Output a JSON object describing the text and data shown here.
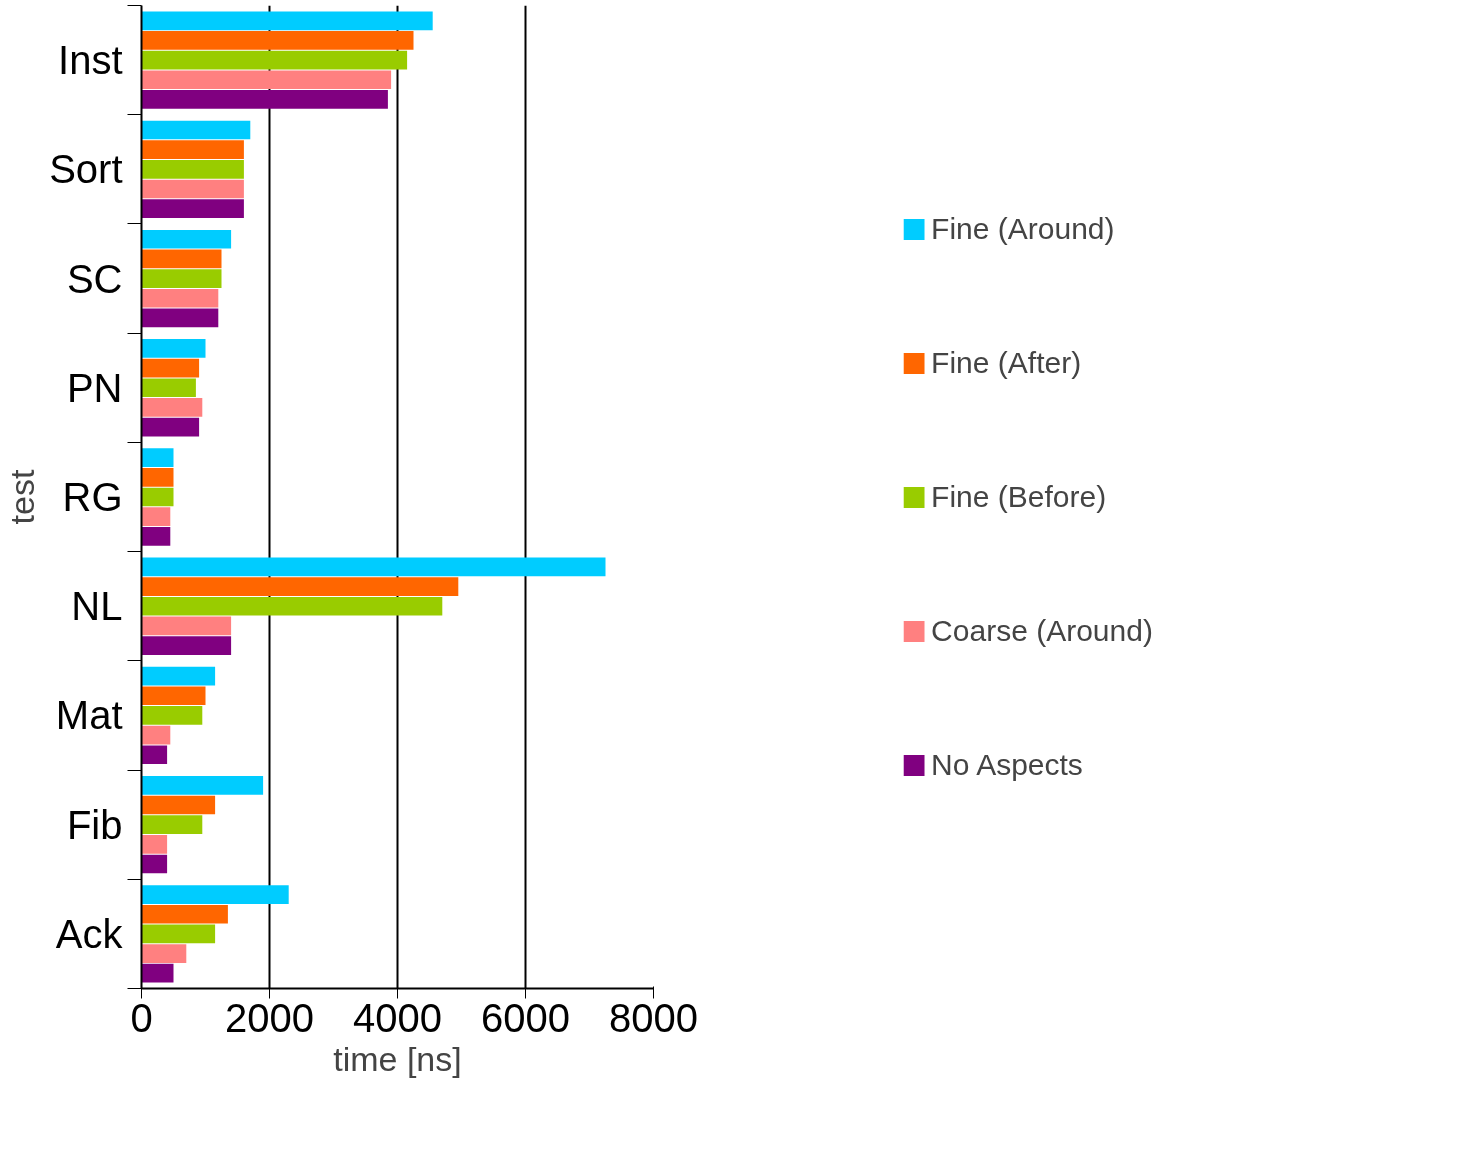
{
  "chart_data": {
    "type": "bar",
    "orientation": "horizontal",
    "xlabel": "time [ns]",
    "ylabel": "test",
    "categories": [
      "Inst",
      "Sort",
      "SC",
      "PN",
      "RG",
      "NL",
      "Mat",
      "Fib",
      "Ack"
    ],
    "series": [
      {
        "name": "Fine (Around)",
        "color": "#00ccff",
        "values": [
          4550,
          1700,
          1400,
          1000,
          500,
          7250,
          1150,
          1900,
          2300
        ]
      },
      {
        "name": "Fine (After)",
        "color": "#ff6600",
        "values": [
          4250,
          1600,
          1250,
          900,
          500,
          4950,
          1000,
          1150,
          1350
        ]
      },
      {
        "name": "Fine (Before)",
        "color": "#99cc00",
        "values": [
          4150,
          1600,
          1250,
          850,
          500,
          4700,
          950,
          950,
          1150
        ]
      },
      {
        "name": "Coarse (Around)",
        "color": "#ff8080",
        "values": [
          3900,
          1600,
          1200,
          950,
          450,
          1400,
          450,
          400,
          700
        ]
      },
      {
        "name": "No Aspects",
        "color": "#800080",
        "values": [
          3850,
          1600,
          1200,
          900,
          450,
          1400,
          400,
          400,
          500
        ]
      }
    ],
    "xlim": [
      0,
      8000
    ],
    "xticks": [
      0,
      2000,
      4000,
      6000,
      8000
    ],
    "grid": "x",
    "legend": "right"
  }
}
